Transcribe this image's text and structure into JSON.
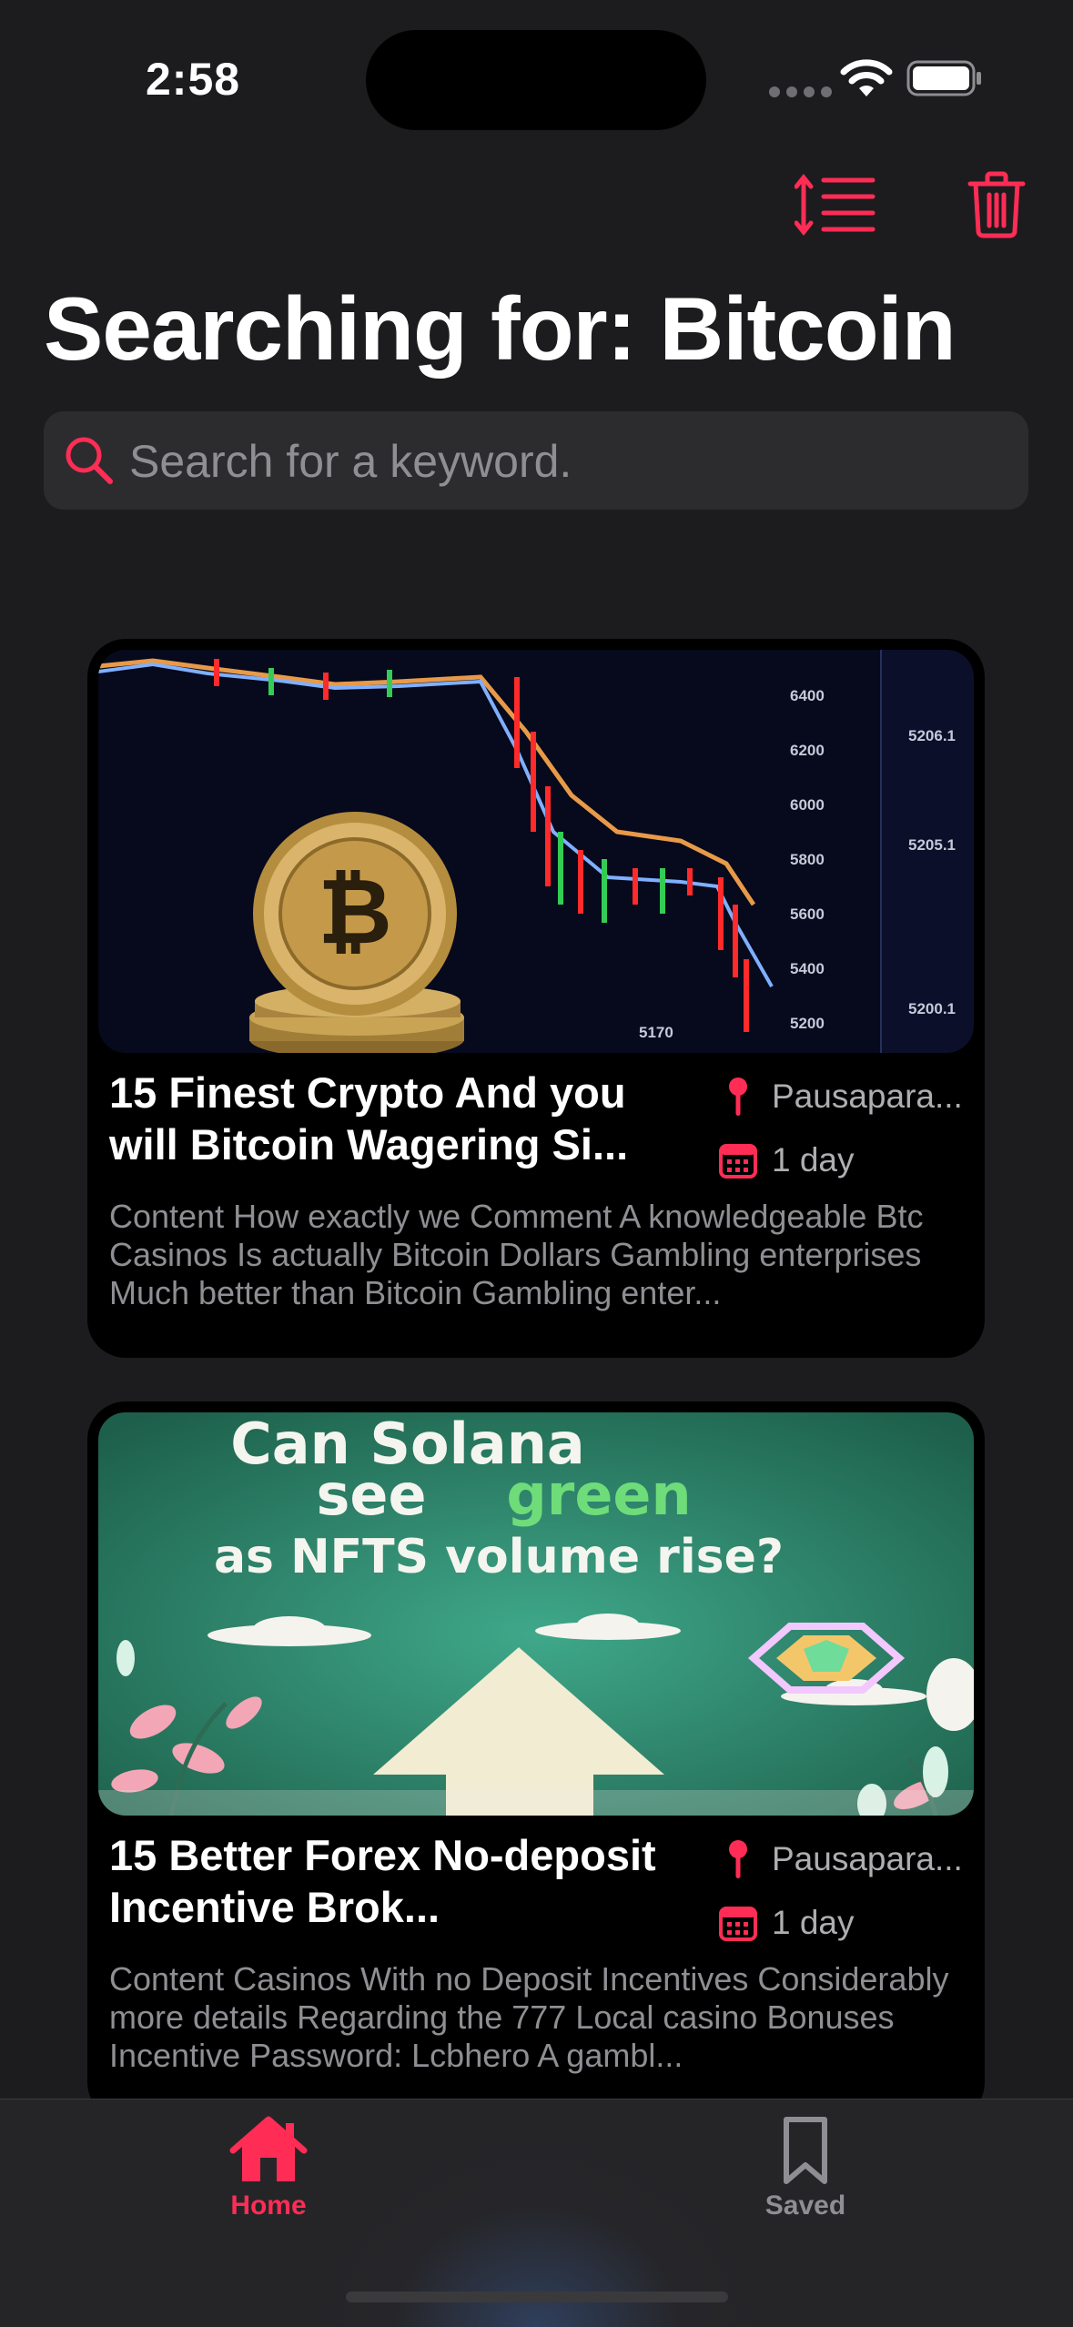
{
  "status_bar": {
    "time": "2:58"
  },
  "header": {
    "title": "Searching for: Bitcoin"
  },
  "search": {
    "placeholder": "Search for a keyword."
  },
  "articles": [
    {
      "title": "15 Finest Crypto And you will Bitcoin Wagering Si...",
      "location": "Pausapara...",
      "date": "1 day",
      "description": "Content How exactly we Comment A knowledgeable Btc Casinos Is actually Bitcoin Dollars Gambling enterprises Much better than Bitcoin Gambling enter...",
      "image": {
        "axis_labels": [
          "6400",
          "6200",
          "6000",
          "5800",
          "5600",
          "5400",
          "5200"
        ],
        "price_labels": [
          "5206.1",
          "5205.1",
          "5200.1"
        ],
        "bottom_label": "5170"
      }
    },
    {
      "title": "15 Better Forex No-deposit Incentive Brok...",
      "location": "Pausapara...",
      "date": "1 day",
      "description": "Content Casinos With no Deposit Incentives Considerably more details Regarding the 777 Local casino Bonuses Incentive Password: Lcbhero A gambl...",
      "image": {
        "line1": "Can Solana",
        "line2_a": "see",
        "line2_b": "green",
        "line3": "as NFTS volume rise?"
      }
    }
  ],
  "tab_bar": {
    "tabs": [
      {
        "label": "Home",
        "icon": "house-icon",
        "active": true
      },
      {
        "label": "Saved",
        "icon": "bookmark-icon",
        "active": false
      }
    ]
  },
  "colors": {
    "accent": "#ff2d55",
    "background": "#1c1c1e",
    "card": "#000000"
  }
}
